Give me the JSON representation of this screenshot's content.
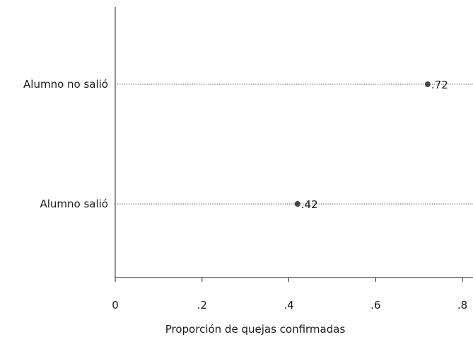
{
  "chart_data": {
    "type": "scatter",
    "title": "",
    "xlabel": "Proporción de quejas confirmadas",
    "ylabel": "",
    "xlim": [
      0,
      0.83
    ],
    "x_ticks": [
      0,
      0.2,
      0.4,
      0.6,
      0.8
    ],
    "x_tick_labels": [
      "0",
      ".2",
      ".4",
      ".6",
      ".8"
    ],
    "grid": false,
    "points": [
      {
        "category": "Alumno no salió",
        "value": 0.72,
        "label": ".72"
      },
      {
        "category": "Alumno salió",
        "value": 0.42,
        "label": ".42"
      }
    ],
    "point_color": "#444444"
  }
}
